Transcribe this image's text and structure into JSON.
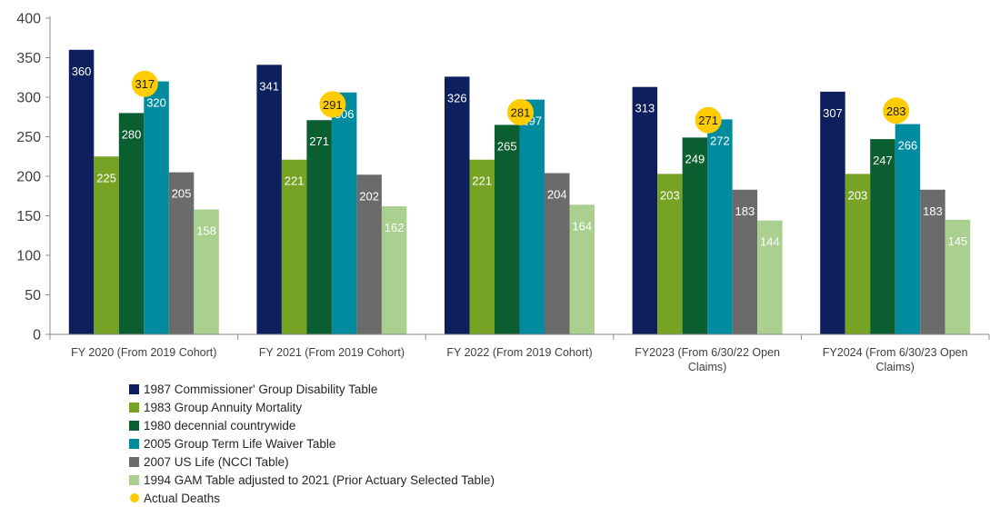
{
  "chart_data": {
    "type": "bar",
    "title": "",
    "xlabel": "",
    "ylabel": "",
    "ylim": [
      0,
      400
    ],
    "yticks": [
      0,
      50,
      100,
      150,
      200,
      250,
      300,
      350,
      400
    ],
    "grid": false,
    "legend_position": "bottom-left",
    "categories": [
      [
        "FY 2020 (From 2019 Cohort)"
      ],
      [
        "FY 2021 (From 2019 Cohort)"
      ],
      [
        "FY 2022 (From 2019 Cohort)"
      ],
      [
        "FY2023 (From 6/30/22 Open",
        "Claims)"
      ],
      [
        "FY2024 (From 6/30/23 Open",
        "Claims)"
      ]
    ],
    "series": [
      {
        "name": "1987 Commissioner' Group Disability Table",
        "color": "#0d1f5c",
        "label_color": "#ffffff",
        "values": [
          360,
          341,
          326,
          313,
          307
        ]
      },
      {
        "name": "1983 Group Annuity Mortality",
        "color": "#77a324",
        "label_color": "#ffffff",
        "values": [
          225,
          221,
          221,
          203,
          203
        ]
      },
      {
        "name": "1980 decennial countrywide",
        "color": "#0b5e30",
        "label_color": "#ffffff",
        "values": [
          280,
          271,
          265,
          249,
          247
        ]
      },
      {
        "name": "2005 Group Term Life Waiver Table",
        "color": "#008c9e",
        "label_color": "#ffffff",
        "values": [
          320,
          306,
          297,
          272,
          266
        ]
      },
      {
        "name": "2007 US Life (NCCI Table)",
        "color": "#6b6b6b",
        "label_color": "#ffffff",
        "values": [
          205,
          202,
          204,
          183,
          183
        ]
      },
      {
        "name": "1994 GAM Table adjusted to 2021 (Prior Actuary Selected Table)",
        "color": "#a9d08e",
        "label_color": "#ffffff",
        "values": [
          158,
          162,
          164,
          144,
          145
        ]
      }
    ],
    "markers": {
      "name": "Actual Deaths",
      "color": "#ffcc00",
      "label_color": "#1a1a1a",
      "values": [
        317,
        291,
        281,
        271,
        283
      ]
    }
  }
}
